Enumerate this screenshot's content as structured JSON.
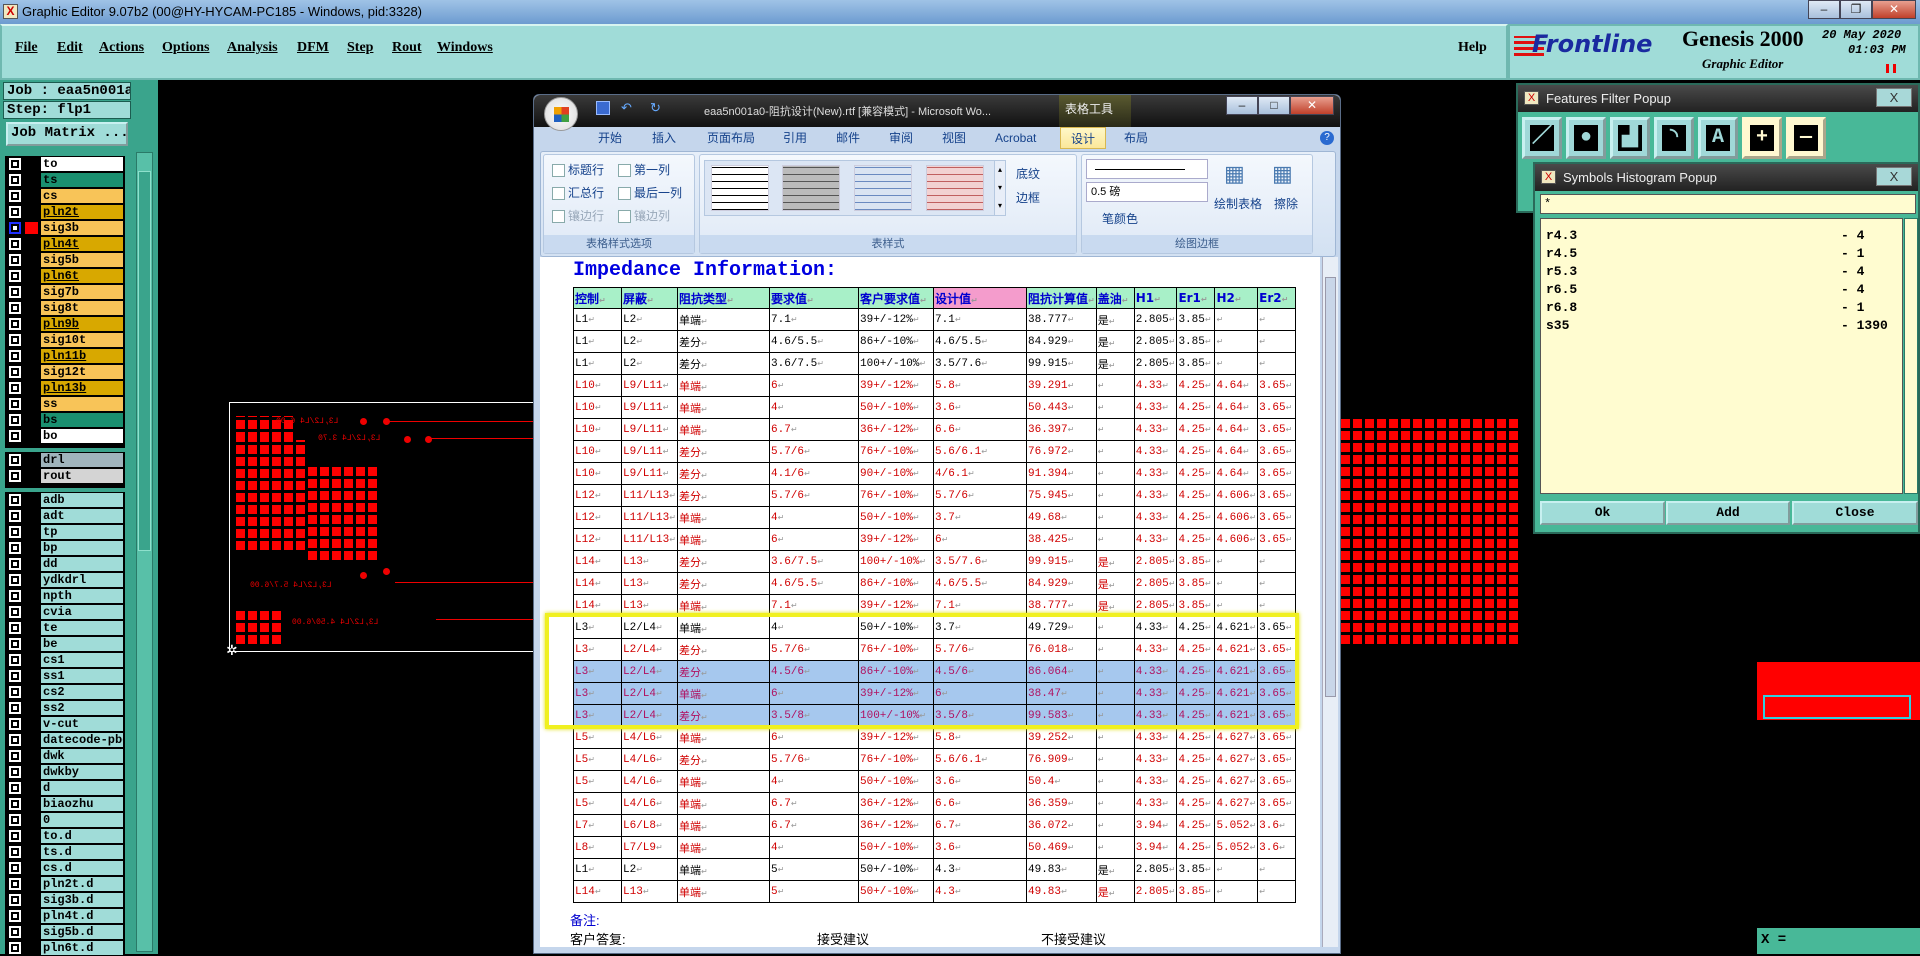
{
  "app": {
    "title": "Graphic Editor 9.07b2 (00@HY-HYCAM-PC185 - Windows, pid:3328)"
  },
  "menu": [
    "File",
    "Edit",
    "Actions",
    "Options",
    "Analysis",
    "DFM",
    "Step",
    "Rout",
    "Windows"
  ],
  "help": "Help",
  "logo": {
    "brand": "Frontline",
    "product": "Genesis 2000",
    "subtitle": "Graphic Editor",
    "date": "20 May 2020",
    "time": "01:03 PM"
  },
  "job": {
    "job_label": "Job : eaa5n001a0",
    "step_label": "Step: flp1",
    "matrix_button": "Job Matrix ..."
  },
  "layers": [
    {
      "name": "to",
      "color": "#ffffff"
    },
    {
      "name": "ts",
      "color": "#1a9070"
    },
    {
      "name": "cs",
      "color": "#f8c458"
    },
    {
      "name": "pln2t",
      "color": "#d8a800"
    },
    {
      "name": "sig3b",
      "color": "#f8c458",
      "active": true
    },
    {
      "name": "pln4t",
      "color": "#d8a800"
    },
    {
      "name": "sig5b",
      "color": "#f8c458"
    },
    {
      "name": "pln6t",
      "color": "#d8a800"
    },
    {
      "name": "sig7b",
      "color": "#f8c458"
    },
    {
      "name": "sig8t",
      "color": "#f8c458"
    },
    {
      "name": "pln9b",
      "color": "#d8a800"
    },
    {
      "name": "sig10t",
      "color": "#f8c458"
    },
    {
      "name": "pln11b",
      "color": "#d8a800"
    },
    {
      "name": "sig12t",
      "color": "#f8c458"
    },
    {
      "name": "pln13b",
      "color": "#d8a800"
    },
    {
      "name": "ss",
      "color": "#f8c458"
    },
    {
      "name": "bs",
      "color": "#1a9070"
    },
    {
      "name": "bo",
      "color": "#ffffff"
    }
  ],
  "drill_layers": [
    {
      "name": "drl",
      "color": "#a0b4bc"
    },
    {
      "name": "rout",
      "color": "#d4d4d4"
    }
  ],
  "misc_layers": [
    "adb",
    "adt",
    "tp",
    "bp",
    "dd",
    "ydkdrl",
    "npth",
    "cvia",
    "te",
    "be",
    "cs1",
    "ss1",
    "cs2",
    "ss2",
    "v-cut",
    "datecode-pbe",
    "dwk",
    "dwkby",
    "d",
    "biaozhu",
    "0",
    "to.d",
    "ts.d",
    "cs.d",
    "pln2t.d",
    "sig3b.d",
    "pln4t.d",
    "sig5b.d",
    "pln6t.d"
  ],
  "word": {
    "title": "eaa5n001a0-阻抗设计(New).rtf [兼容模式] - Microsoft Wo...",
    "context_tab": "表格工具",
    "tabs": [
      "开始",
      "插入",
      "页面布局",
      "引用",
      "邮件",
      "审阅",
      "视图",
      "Acrobat",
      "设计",
      "布局"
    ],
    "active_tab": "设计",
    "style_options": {
      "items": [
        "标题行",
        "第一列",
        "汇总行",
        "最后一列",
        "镶边行",
        "镶边列"
      ],
      "label": "表格样式选项"
    },
    "table_styles_label": "表样式",
    "shading": "底纹",
    "borders": "边框",
    "pen_weight": "0.5 磅",
    "pen_color": "笔颜色",
    "draw_table": "绘制表格",
    "eraser": "擦除",
    "draw_borders_label": "绘图边框",
    "heading": "Impedance Information:",
    "columns": [
      "控制",
      "屏蔽",
      "阻抗类型",
      "要求值",
      "客户要求值",
      "设计值",
      "阻抗计算值",
      "盖油",
      "H1",
      "Er1",
      "H2",
      "Er2"
    ],
    "rows": [
      {
        "s": "k",
        "c": [
          "L1",
          "L2",
          "单端",
          "7.1",
          "39+/-12%",
          "7.1",
          "38.777",
          "是",
          "2.805",
          "3.85",
          "",
          ""
        ]
      },
      {
        "s": "k",
        "c": [
          "L1",
          "L2",
          "差分",
          "4.6/5.5",
          "86+/-10%",
          "4.6/5.5",
          "84.929",
          "是",
          "2.805",
          "3.85",
          "",
          ""
        ]
      },
      {
        "s": "k",
        "c": [
          "L1",
          "L2",
          "差分",
          "3.6/7.5",
          "100+/-10%",
          "3.5/7.6",
          "99.915",
          "是",
          "2.805",
          "3.85",
          "",
          ""
        ]
      },
      {
        "s": "r",
        "c": [
          "L10",
          "L9/L11",
          "单端",
          "6",
          "39+/-12%",
          "5.8",
          "39.291",
          "",
          "4.33",
          "4.25",
          "4.64",
          "3.65"
        ]
      },
      {
        "s": "r",
        "c": [
          "L10",
          "L9/L11",
          "单端",
          "4",
          "50+/-10%",
          "3.6",
          "50.443",
          "",
          "4.33",
          "4.25",
          "4.64",
          "3.65"
        ]
      },
      {
        "s": "r",
        "c": [
          "L10",
          "L9/L11",
          "单端",
          "6.7",
          "36+/-12%",
          "6.6",
          "36.397",
          "",
          "4.33",
          "4.25",
          "4.64",
          "3.65"
        ]
      },
      {
        "s": "r",
        "c": [
          "L10",
          "L9/L11",
          "差分",
          "5.7/6",
          "76+/-10%",
          "5.6/6.1",
          "76.972",
          "",
          "4.33",
          "4.25",
          "4.64",
          "3.65"
        ]
      },
      {
        "s": "r",
        "c": [
          "L10",
          "L9/L11",
          "差分",
          "4.1/6",
          "90+/-10%",
          "4/6.1",
          "91.394",
          "",
          "4.33",
          "4.25",
          "4.64",
          "3.65"
        ]
      },
      {
        "s": "r",
        "c": [
          "L12",
          "L11/L13",
          "差分",
          "5.7/6",
          "76+/-10%",
          "5.7/6",
          "75.945",
          "",
          "4.33",
          "4.25",
          "4.606",
          "3.65"
        ]
      },
      {
        "s": "r",
        "c": [
          "L12",
          "L11/L13",
          "单端",
          "4",
          "50+/-10%",
          "3.7",
          "49.68",
          "",
          "4.33",
          "4.25",
          "4.606",
          "3.65"
        ]
      },
      {
        "s": "r",
        "c": [
          "L12",
          "L11/L13",
          "单端",
          "6",
          "39+/-12%",
          "6",
          "38.425",
          "",
          "4.33",
          "4.25",
          "4.606",
          "3.65"
        ]
      },
      {
        "s": "r",
        "c": [
          "L14",
          "L13",
          "差分",
          "3.6/7.5",
          "100+/-10%",
          "3.5/7.6",
          "99.915",
          "是",
          "2.805",
          "3.85",
          "",
          ""
        ]
      },
      {
        "s": "r",
        "c": [
          "L14",
          "L13",
          "差分",
          "4.6/5.5",
          "86+/-10%",
          "4.6/5.5",
          "84.929",
          "是",
          "2.805",
          "3.85",
          "",
          ""
        ]
      },
      {
        "s": "r",
        "c": [
          "L14",
          "L13",
          "单端",
          "7.1",
          "39+/-12%",
          "7.1",
          "38.777",
          "是",
          "2.805",
          "3.85",
          "",
          ""
        ]
      },
      {
        "s": "k",
        "c": [
          "L3",
          "L2/L4",
          "单端",
          "4",
          "50+/-10%",
          "3.7",
          "49.729",
          "",
          "4.33",
          "4.25",
          "4.621",
          "3.65"
        ]
      },
      {
        "s": "r",
        "c": [
          "L3",
          "L2/L4",
          "差分",
          "5.7/6",
          "76+/-10%",
          "5.7/6",
          "76.018",
          "",
          "4.33",
          "4.25",
          "4.621",
          "3.65"
        ]
      },
      {
        "s": "h",
        "c": [
          "L3",
          "L2/L4",
          "差分",
          "4.5/6",
          "86+/-10%",
          "4.5/6",
          "86.064",
          "",
          "4.33",
          "4.25",
          "4.621",
          "3.65"
        ]
      },
      {
        "s": "h",
        "c": [
          "L3",
          "L2/L4",
          "单端",
          "6",
          "39+/-12%",
          "6",
          "38.47",
          "",
          "4.33",
          "4.25",
          "4.621",
          "3.65"
        ]
      },
      {
        "s": "h",
        "c": [
          "L3",
          "L2/L4",
          "差分",
          "3.5/8",
          "100+/-10%",
          "3.5/8",
          "99.583",
          "",
          "4.33",
          "4.25",
          "4.621",
          "3.65"
        ]
      },
      {
        "s": "r",
        "c": [
          "L5",
          "L4/L6",
          "单端",
          "6",
          "39+/-12%",
          "5.8",
          "39.252",
          "",
          "4.33",
          "4.25",
          "4.627",
          "3.65"
        ]
      },
      {
        "s": "r",
        "c": [
          "L5",
          "L4/L6",
          "差分",
          "5.7/6",
          "76+/-10%",
          "5.6/6.1",
          "76.909",
          "",
          "4.33",
          "4.25",
          "4.627",
          "3.65"
        ]
      },
      {
        "s": "r",
        "c": [
          "L5",
          "L4/L6",
          "单端",
          "4",
          "50+/-10%",
          "3.6",
          "50.4",
          "",
          "4.33",
          "4.25",
          "4.627",
          "3.65"
        ]
      },
      {
        "s": "r",
        "c": [
          "L5",
          "L4/L6",
          "单端",
          "6.7",
          "36+/-12%",
          "6.6",
          "36.359",
          "",
          "4.33",
          "4.25",
          "4.627",
          "3.65"
        ]
      },
      {
        "s": "r",
        "c": [
          "L7",
          "L6/L8",
          "单端",
          "6.7",
          "36+/-12%",
          "6.7",
          "36.072",
          "",
          "3.94",
          "4.25",
          "5.052",
          "3.6"
        ]
      },
      {
        "s": "r",
        "c": [
          "L8",
          "L7/L9",
          "单端",
          "4",
          "50+/-10%",
          "3.6",
          "50.469",
          "",
          "3.94",
          "4.25",
          "5.052",
          "3.6"
        ]
      },
      {
        "s": "k",
        "c": [
          "L1",
          "L2",
          "单端",
          "5",
          "50+/-10%",
          "4.3",
          "49.83",
          "是",
          "2.805",
          "3.85",
          "",
          ""
        ]
      },
      {
        "s": "r",
        "c": [
          "L14",
          "L13",
          "单端",
          "5",
          "50+/-10%",
          "4.3",
          "49.83",
          "是",
          "2.805",
          "3.85",
          "",
          ""
        ]
      }
    ],
    "remarks": "备注:",
    "reply": "客户答复:",
    "accept": "接受建议",
    "reject": "不接受建议"
  },
  "pcb_labels": [
    "L3,L2/L4 6.00",
    "L3,L2/L4 3.70",
    "L3,L2/L4 5.7/6.00",
    "L3,L2/L4 4.50/6.00"
  ],
  "features_filter": {
    "title": "Features Filter Popup",
    "buttons": [
      "line-icon",
      "pad-icon",
      "surface-icon",
      "arc-icon",
      "text-icon",
      "plus-icon",
      "minus-icon"
    ]
  },
  "histogram": {
    "title": "Symbols Histogram Popup",
    "filter": "*",
    "items": [
      {
        "sym": "r4.3",
        "count": "4"
      },
      {
        "sym": "r4.5",
        "count": "1"
      },
      {
        "sym": "r5.3",
        "count": "4"
      },
      {
        "sym": "r6.5",
        "count": "4"
      },
      {
        "sym": "r6.8",
        "count": "1"
      },
      {
        "sym": "s35",
        "count": "1390"
      }
    ],
    "ok": "Ok",
    "add": "Add",
    "close": "Close"
  },
  "coord": {
    "label": "X ="
  }
}
